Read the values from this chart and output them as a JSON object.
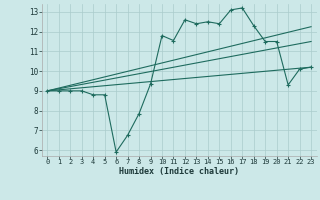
{
  "xlabel": "Humidex (Indice chaleur)",
  "xlim": [
    -0.5,
    23.5
  ],
  "ylim": [
    5.7,
    13.4
  ],
  "xticks": [
    0,
    1,
    2,
    3,
    4,
    5,
    6,
    7,
    8,
    9,
    10,
    11,
    12,
    13,
    14,
    15,
    16,
    17,
    18,
    19,
    20,
    21,
    22,
    23
  ],
  "yticks": [
    6,
    7,
    8,
    9,
    10,
    11,
    12,
    13
  ],
  "color": "#1e6b5e",
  "bg_color": "#cce8e8",
  "grid_color": "#aacccc",
  "line1_x": [
    0,
    1,
    2,
    3,
    4,
    5,
    6,
    7,
    8,
    9,
    10,
    11,
    12,
    13,
    14,
    15,
    16,
    17,
    18,
    19,
    20,
    21,
    22,
    23
  ],
  "line1_y": [
    9.0,
    9.0,
    9.0,
    9.0,
    8.8,
    8.8,
    5.9,
    6.75,
    7.85,
    9.35,
    11.8,
    11.55,
    12.6,
    12.4,
    12.5,
    12.4,
    13.1,
    13.2,
    12.3,
    11.5,
    11.5,
    9.3,
    10.1,
    10.2
  ],
  "line2_x": [
    0,
    23
  ],
  "line2_y": [
    9.0,
    12.25
  ],
  "line3_x": [
    0,
    23
  ],
  "line3_y": [
    9.0,
    11.5
  ],
  "line4_x": [
    0,
    23
  ],
  "line4_y": [
    9.0,
    10.2
  ]
}
